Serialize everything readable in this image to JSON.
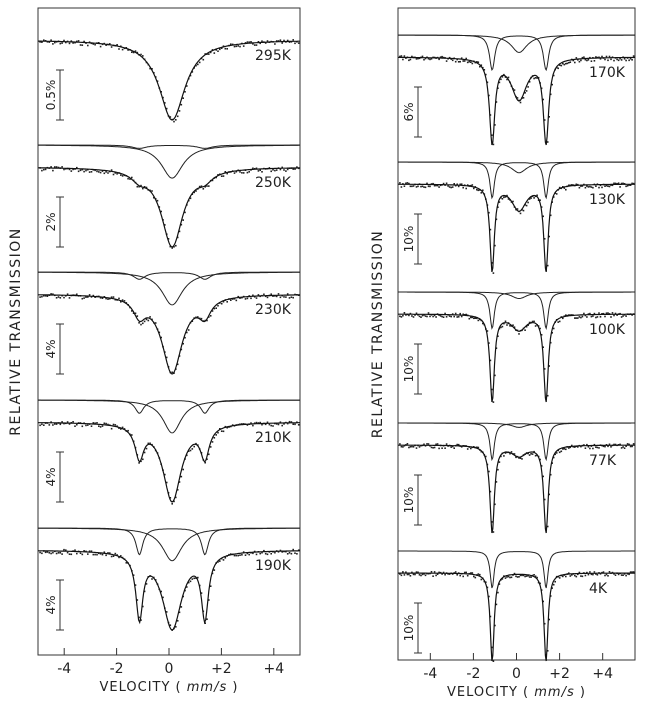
{
  "chart_data": [
    {
      "type": "line",
      "xlabel_parts": [
        "VELOCITY (",
        "mm/s",
        ")"
      ],
      "ylabel": "RELATIVE TRANSMISSION",
      "xlim": [
        -5,
        5
      ],
      "xticks": [
        -4,
        -2,
        0,
        2,
        4
      ],
      "xtick_labels": [
        "-4",
        "-2",
        "0",
        "+2",
        "+4"
      ],
      "spectra": [
        {
          "temperature": "295K",
          "scale": "0.5%",
          "quadrupole_splitting": 0,
          "doublet_fraction": 0,
          "singlet_depth": 1.0,
          "singlet_width": 1.2,
          "doublet_width": 0.3
        },
        {
          "temperature": "250K",
          "scale": "2%",
          "quadrupole_splitting": 2.5,
          "doublet_fraction": 0.1,
          "singlet_depth": 1.0,
          "singlet_width": 1.0,
          "doublet_width": 0.7
        },
        {
          "temperature": "230K",
          "scale": "4%",
          "quadrupole_splitting": 2.5,
          "doublet_fraction": 0.22,
          "singlet_depth": 1.0,
          "singlet_width": 0.95,
          "doublet_width": 0.55
        },
        {
          "temperature": "210K",
          "scale": "4%",
          "quadrupole_splitting": 2.5,
          "doublet_fraction": 0.4,
          "singlet_depth": 1.0,
          "singlet_width": 0.85,
          "doublet_width": 0.4
        },
        {
          "temperature": "190K",
          "scale": "4%",
          "quadrupole_splitting": 2.5,
          "doublet_fraction": 0.65,
          "singlet_depth": 0.8,
          "singlet_width": 0.9,
          "doublet_width": 0.32
        }
      ]
    },
    {
      "type": "line",
      "xlabel_parts": [
        "VELOCITY (",
        "mm/s",
        ")"
      ],
      "ylabel": "RELATIVE TRANSMISSION",
      "xlim": [
        -5.5,
        5.5
      ],
      "xticks": [
        -4,
        -2,
        0,
        2,
        4
      ],
      "xtick_labels": [
        "-4",
        "-2",
        "0",
        "+2",
        "+4"
      ],
      "spectra": [
        {
          "temperature": "170K",
          "scale": "6%",
          "quadrupole_splitting": 2.5,
          "doublet_fraction": 1.0,
          "singlet_depth": 0.5,
          "singlet_width": 0.9,
          "doublet_width": 0.3
        },
        {
          "temperature": "130K",
          "scale": "10%",
          "quadrupole_splitting": 2.5,
          "doublet_fraction": 1.0,
          "singlet_depth": 0.3,
          "singlet_width": 0.85,
          "doublet_width": 0.25
        },
        {
          "temperature": "100K",
          "scale": "10%",
          "quadrupole_splitting": 2.5,
          "doublet_fraction": 1.0,
          "singlet_depth": 0.18,
          "singlet_width": 0.85,
          "doublet_width": 0.25
        },
        {
          "temperature": "77K",
          "scale": "10%",
          "quadrupole_splitting": 2.5,
          "doublet_fraction": 1.0,
          "singlet_depth": 0.12,
          "singlet_width": 0.85,
          "doublet_width": 0.25
        },
        {
          "temperature": "4K",
          "scale": "10%",
          "quadrupole_splitting": 2.5,
          "doublet_fraction": 1.0,
          "singlet_depth": 0,
          "singlet_width": 0.85,
          "doublet_width": 0.22
        }
      ]
    }
  ]
}
